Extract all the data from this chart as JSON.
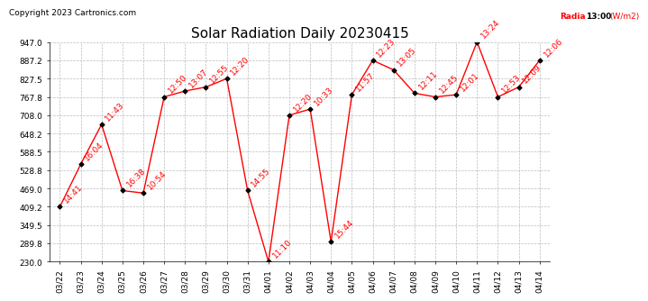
{
  "title": "Solar Radiation Daily 20230415",
  "copyright": "Copyright 2023 Cartronics.com",
  "legend_label": "Radia",
  "legend_time": "13:00",
  "legend_unit": "(W/m2)",
  "ylim": [
    230.0,
    947.0
  ],
  "yticks": [
    230.0,
    289.8,
    349.5,
    409.2,
    469.0,
    528.8,
    588.5,
    648.2,
    708.0,
    767.8,
    827.5,
    887.2,
    947.0
  ],
  "x_labels": [
    "03/22",
    "03/23",
    "03/24",
    "03/25",
    "03/26",
    "03/27",
    "03/28",
    "03/29",
    "03/30",
    "03/31",
    "04/01",
    "04/02",
    "04/03",
    "04/04",
    "04/05",
    "04/06",
    "04/07",
    "04/08",
    "04/09",
    "04/10",
    "04/11",
    "04/12",
    "04/13",
    "04/14"
  ],
  "data_points": [
    {
      "date": "03/22",
      "value": 409.2,
      "time": "14:41"
    },
    {
      "date": "03/23",
      "value": 548.0,
      "time": "16:04"
    },
    {
      "date": "03/24",
      "value": 678.0,
      "time": "11:43"
    },
    {
      "date": "03/25",
      "value": 462.0,
      "time": "16:38"
    },
    {
      "date": "03/26",
      "value": 454.0,
      "time": "10:54"
    },
    {
      "date": "03/27",
      "value": 767.8,
      "time": "12:50"
    },
    {
      "date": "03/28",
      "value": 787.0,
      "time": "13:07"
    },
    {
      "date": "03/29",
      "value": 800.0,
      "time": "12:55"
    },
    {
      "date": "03/30",
      "value": 827.5,
      "time": "12:20"
    },
    {
      "date": "03/31",
      "value": 462.0,
      "time": "14:55"
    },
    {
      "date": "04/01",
      "value": 230.0,
      "time": "11:10"
    },
    {
      "date": "04/02",
      "value": 708.0,
      "time": "12:20"
    },
    {
      "date": "04/03",
      "value": 728.0,
      "time": "10:33"
    },
    {
      "date": "04/04",
      "value": 295.0,
      "time": "15:44"
    },
    {
      "date": "04/05",
      "value": 775.0,
      "time": "11:57"
    },
    {
      "date": "04/06",
      "value": 887.2,
      "time": "12:23"
    },
    {
      "date": "04/07",
      "value": 856.0,
      "time": "13:05"
    },
    {
      "date": "04/08",
      "value": 780.0,
      "time": "12:11"
    },
    {
      "date": "04/09",
      "value": 767.8,
      "time": "12:45"
    },
    {
      "date": "04/10",
      "value": 775.0,
      "time": "12:01"
    },
    {
      "date": "04/11",
      "value": 947.0,
      "time": "13:24"
    },
    {
      "date": "04/12",
      "value": 767.8,
      "time": "12:53"
    },
    {
      "date": "04/13",
      "value": 800.0,
      "time": "12:09"
    },
    {
      "date": "04/14",
      "value": 887.2,
      "time": "12:06"
    }
  ],
  "line_color": "#ff0000",
  "marker_color": "#000000",
  "bg_color": "#ffffff",
  "grid_color": "#bbbbbb",
  "title_fontsize": 11,
  "label_fontsize": 6.5,
  "annotation_fontsize": 6.5,
  "copyright_fontsize": 6.5
}
